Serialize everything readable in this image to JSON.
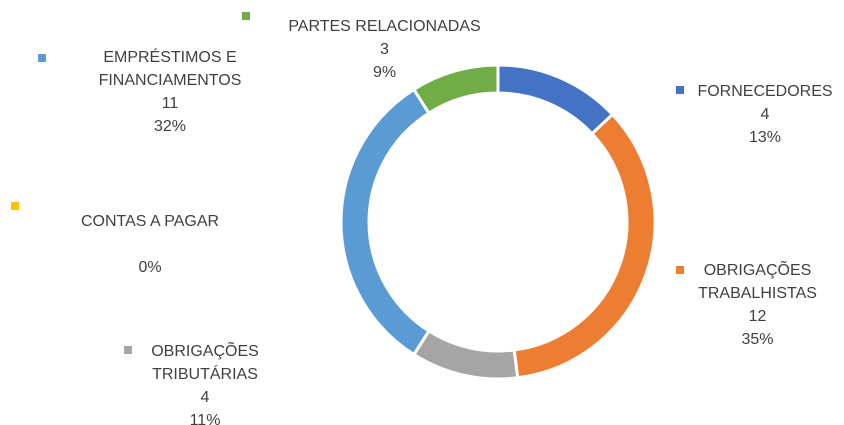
{
  "chart_data": {
    "type": "donut",
    "categories": [
      "FORNECEDORES",
      "OBRIGAÇÕES TRABALHISTAS",
      "OBRIGAÇÕES TRIBUTÁRIAS",
      "CONTAS A PAGAR",
      "EMPRÉSTIMOS E FINANCIAMENTOS",
      "PARTES RELACIONADAS"
    ],
    "values": [
      13,
      35,
      11,
      0,
      32,
      9
    ],
    "value_labels": [
      "13%",
      "35%",
      "11%",
      "0%",
      "32%",
      "9%"
    ],
    "counts": [
      4,
      12,
      4,
      null,
      11,
      3
    ],
    "colors": [
      "#4472c4",
      "#ed7d31",
      "#a5a5a5",
      "#ffc000",
      "#5b9bd5",
      "#70ad47"
    ]
  }
}
